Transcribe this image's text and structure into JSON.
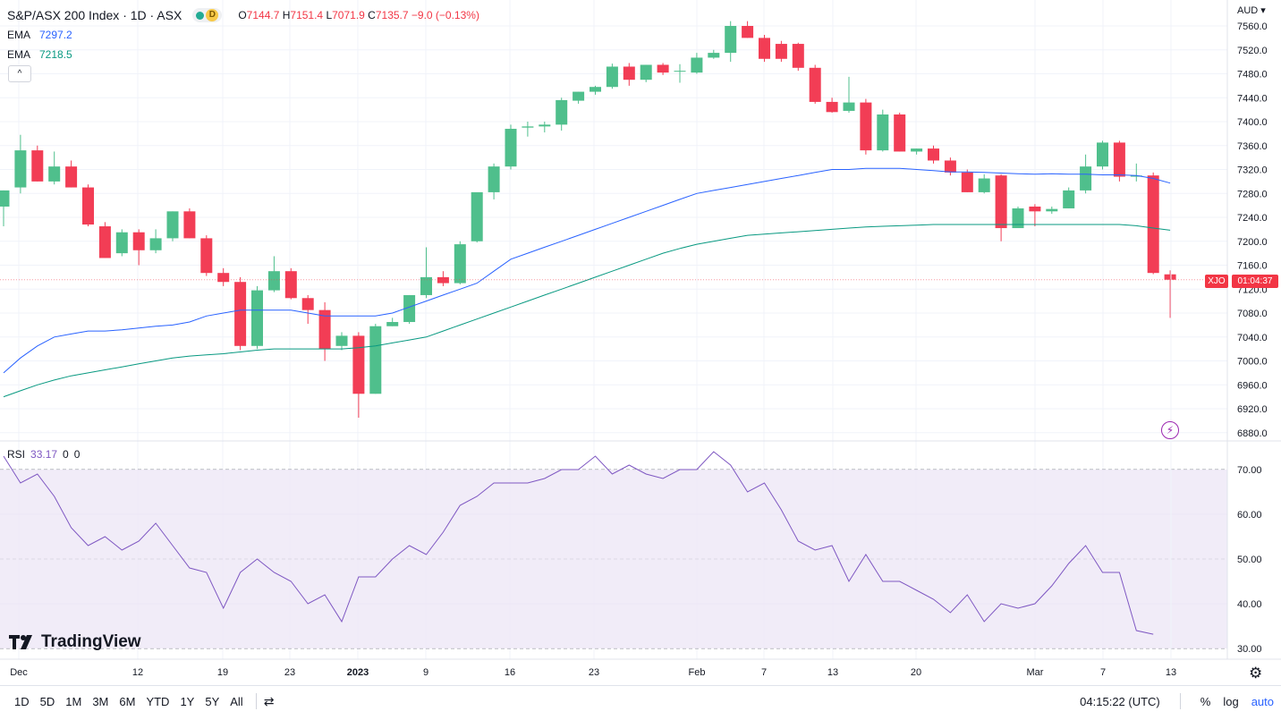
{
  "legend": {
    "title": "S&P/ASX 200 Index · 1D · ASX",
    "interval_badge": "D",
    "ohlc": {
      "o_label": "O",
      "o": "7144.7",
      "h_label": "H",
      "h": "7151.4",
      "l_label": "L",
      "l": "7071.9",
      "c_label": "C",
      "c": "7135.7",
      "change": "−9.0 (−0.13%)"
    },
    "ema1_label": "EMA",
    "ema1_value": "7297.2",
    "ema2_label": "EMA",
    "ema2_value": "7218.5",
    "collapse": "^"
  },
  "rsi_legend": {
    "label": "RSI",
    "value": "33.17",
    "extra1": "0",
    "extra2": "0"
  },
  "currency": "AUD ▾",
  "price_tag": {
    "symbol": "XJO",
    "countdown": "01:04:37"
  },
  "bottom_bar": {
    "timeframes": [
      "1D",
      "5D",
      "1M",
      "3M",
      "6M",
      "YTD",
      "1Y",
      "5Y",
      "All"
    ],
    "time": "04:15:22 (UTC)",
    "percent": "%",
    "log": "log",
    "auto": "auto"
  },
  "brand": "TradingView",
  "colors": {
    "up": "#4fbf8c",
    "down": "#f23d55",
    "ema_blue": "#2962ff",
    "ema_green": "#089981",
    "rsi_line": "#7e57c2",
    "rsi_band": "#ede7f6"
  },
  "chart_data": [
    {
      "type": "candlestick",
      "title": "S&P/ASX 200 Index",
      "x_tick_labels": [
        "Dec",
        "12",
        "19",
        "23",
        "2023",
        "9",
        "16",
        "23",
        "Feb",
        "7",
        "13",
        "20",
        "Mar",
        "7",
        "13"
      ],
      "y_ticks": [
        6880,
        6920,
        6960,
        7000,
        7040,
        7080,
        7120,
        7160,
        7200,
        7240,
        7280,
        7320,
        7360,
        7400,
        7440,
        7480,
        7520,
        7560
      ],
      "ylim": [
        6860,
        7580
      ],
      "candles": [
        [
          7258,
          7285,
          7225,
          7285
        ],
        [
          7290,
          7378,
          7280,
          7352
        ],
        [
          7352,
          7360,
          7300,
          7300
        ],
        [
          7300,
          7350,
          7295,
          7325
        ],
        [
          7325,
          7335,
          7290,
          7290
        ],
        [
          7290,
          7295,
          7225,
          7228
        ],
        [
          7225,
          7232,
          7172,
          7172
        ],
        [
          7180,
          7220,
          7175,
          7215
        ],
        [
          7215,
          7220,
          7160,
          7185
        ],
        [
          7185,
          7220,
          7180,
          7205
        ],
        [
          7205,
          7250,
          7200,
          7250
        ],
        [
          7250,
          7255,
          7205,
          7205
        ],
        [
          7205,
          7210,
          7142,
          7147
        ],
        [
          7147,
          7155,
          7125,
          7132
        ],
        [
          7132,
          7140,
          7018,
          7025
        ],
        [
          7025,
          7125,
          7020,
          7118
        ],
        [
          7118,
          7175,
          7115,
          7150
        ],
        [
          7150,
          7155,
          7103,
          7105
        ],
        [
          7105,
          7110,
          7062,
          7085
        ],
        [
          7085,
          7098,
          7000,
          7020
        ],
        [
          7025,
          7048,
          7018,
          7042
        ],
        [
          7042,
          7048,
          6905,
          6945
        ],
        [
          6945,
          7062,
          6945,
          7058
        ],
        [
          7058,
          7072,
          7058,
          7065
        ],
        [
          7065,
          7110,
          7062,
          7110
        ],
        [
          7110,
          7190,
          7105,
          7140
        ],
        [
          7140,
          7150,
          7125,
          7130
        ],
        [
          7130,
          7200,
          7128,
          7195
        ],
        [
          7200,
          7280,
          7198,
          7282
        ],
        [
          7282,
          7330,
          7270,
          7325
        ],
        [
          7325,
          7395,
          7320,
          7388
        ],
        [
          7390,
          7400,
          7375,
          7392
        ],
        [
          7392,
          7400,
          7382,
          7395
        ],
        [
          7395,
          7440,
          7385,
          7436
        ],
        [
          7435,
          7450,
          7430,
          7450
        ],
        [
          7450,
          7460,
          7445,
          7458
        ],
        [
          7458,
          7497,
          7455,
          7492
        ],
        [
          7492,
          7498,
          7460,
          7470
        ],
        [
          7470,
          7495,
          7466,
          7495
        ],
        [
          7495,
          7498,
          7478,
          7482
        ],
        [
          7484,
          7496,
          7465,
          7485
        ],
        [
          7482,
          7515,
          7480,
          7507
        ],
        [
          7507,
          7520,
          7505,
          7515
        ],
        [
          7515,
          7568,
          7500,
          7560
        ],
        [
          7560,
          7568,
          7540,
          7540
        ],
        [
          7540,
          7545,
          7500,
          7505
        ],
        [
          7530,
          7535,
          7500,
          7505
        ],
        [
          7530,
          7532,
          7485,
          7490
        ],
        [
          7490,
          7495,
          7430,
          7433
        ],
        [
          7433,
          7440,
          7415,
          7416
        ],
        [
          7418,
          7475,
          7415,
          7432
        ],
        [
          7432,
          7438,
          7345,
          7352
        ],
        [
          7352,
          7420,
          7350,
          7412
        ],
        [
          7412,
          7415,
          7350,
          7350
        ],
        [
          7350,
          7355,
          7345,
          7355
        ],
        [
          7355,
          7360,
          7330,
          7335
        ],
        [
          7335,
          7340,
          7310,
          7315
        ],
        [
          7315,
          7320,
          7282,
          7282
        ],
        [
          7282,
          7312,
          7280,
          7305
        ],
        [
          7310,
          7312,
          7200,
          7222
        ],
        [
          7222,
          7258,
          7222,
          7255
        ],
        [
          7258,
          7262,
          7225,
          7250
        ],
        [
          7250,
          7258,
          7246,
          7254
        ],
        [
          7255,
          7290,
          7255,
          7285
        ],
        [
          7285,
          7345,
          7280,
          7325
        ],
        [
          7325,
          7368,
          7320,
          7365
        ],
        [
          7365,
          7368,
          7300,
          7308
        ],
        [
          7308,
          7330,
          7300,
          7310
        ],
        [
          7310,
          7315,
          7145,
          7147
        ],
        [
          7144.7,
          7151.4,
          7071.9,
          7135.7
        ]
      ],
      "ema_series": [
        {
          "name": "EMA",
          "values": [
            6980,
            7005,
            7025,
            7040,
            7045,
            7050,
            7050,
            7052,
            7055,
            7058,
            7060,
            7065,
            7075,
            7080,
            7085,
            7085,
            7085,
            7085,
            7080,
            7075,
            7075,
            7075,
            7075,
            7080,
            7090,
            7100,
            7110,
            7120,
            7130,
            7150,
            7170,
            7180,
            7190,
            7200,
            7210,
            7220,
            7230,
            7240,
            7250,
            7260,
            7270,
            7280,
            7285,
            7290,
            7295,
            7300,
            7305,
            7310,
            7315,
            7320,
            7320,
            7322,
            7322,
            7322,
            7320,
            7318,
            7316,
            7316,
            7315,
            7314,
            7313,
            7312,
            7313,
            7312,
            7312,
            7311,
            7311,
            7310,
            7305,
            7297.2
          ]
        },
        {
          "name": "EMA",
          "values": [
            6940,
            6950,
            6960,
            6968,
            6975,
            6980,
            6985,
            6990,
            6995,
            7000,
            7005,
            7008,
            7010,
            7012,
            7015,
            7018,
            7020,
            7020,
            7020,
            7020,
            7020,
            7022,
            7025,
            7030,
            7035,
            7040,
            7050,
            7060,
            7070,
            7080,
            7090,
            7100,
            7110,
            7120,
            7130,
            7140,
            7150,
            7160,
            7170,
            7180,
            7188,
            7195,
            7200,
            7205,
            7210,
            7212,
            7214,
            7216,
            7218,
            7220,
            7222,
            7224,
            7225,
            7226,
            7227,
            7228,
            7228,
            7228,
            7228,
            7228,
            7228,
            7228,
            7228,
            7228,
            7228,
            7228,
            7228,
            7226,
            7222,
            7218.5
          ]
        }
      ]
    },
    {
      "type": "line",
      "title": "RSI",
      "y_ticks": [
        30,
        40,
        50,
        60,
        70
      ],
      "ylim": [
        28,
        76
      ],
      "band": [
        30,
        70
      ],
      "values": [
        73,
        67,
        69,
        64,
        57,
        53,
        55,
        52,
        54,
        58,
        53,
        48,
        47,
        39,
        47,
        50,
        47,
        45,
        40,
        42,
        36,
        46,
        46,
        50,
        53,
        51,
        56,
        62,
        64,
        67,
        67,
        67,
        68,
        70,
        70,
        73,
        69,
        71,
        69,
        68,
        70,
        70,
        74,
        71,
        65,
        67,
        61,
        54,
        52,
        53,
        45,
        51,
        45,
        45,
        43,
        41,
        38,
        42,
        36,
        40,
        39,
        40,
        44,
        49,
        53,
        47,
        47,
        34,
        33.17
      ]
    }
  ]
}
